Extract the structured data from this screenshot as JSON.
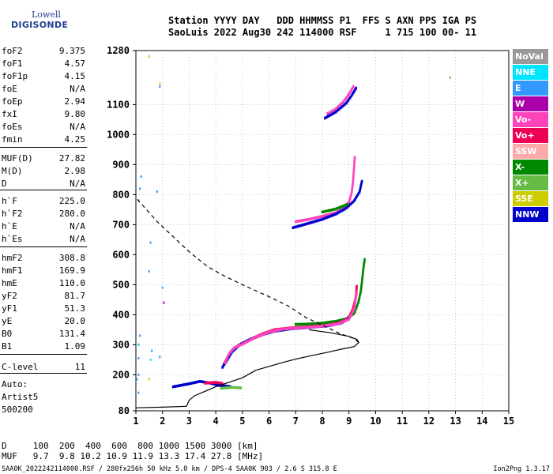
{
  "logo": {
    "line1": "Lowell",
    "line2": "DIGISONDE"
  },
  "header": {
    "line1": "Station YYYY DAY   DDD HHMMSS P1  FFS S AXN PPS IGA PS",
    "line2": "SaoLuis 2022 Aug30 242 114000 RSF     1 715 100 00- 11"
  },
  "params": [
    {
      "k": "foF2",
      "v": "9.375"
    },
    {
      "k": "foF1",
      "v": "4.57"
    },
    {
      "k": "foF1p",
      "v": "4.15"
    },
    {
      "k": "foE",
      "v": "N/A"
    },
    {
      "k": "foEp",
      "v": "2.94"
    },
    {
      "k": "fxI",
      "v": "9.80"
    },
    {
      "k": "foEs",
      "v": "N/A"
    },
    {
      "k": "fmin",
      "v": "4.25"
    },
    {
      "k": "MUF(D)",
      "v": "27.82"
    },
    {
      "k": "M(D)",
      "v": "2.98"
    },
    {
      "k": "D",
      "v": "N/A"
    },
    {
      "k": "h`F",
      "v": "225.0"
    },
    {
      "k": "h`F2",
      "v": "280.0"
    },
    {
      "k": "h`E",
      "v": "N/A"
    },
    {
      "k": "h`Es",
      "v": "N/A"
    },
    {
      "k": "hmF2",
      "v": "308.8"
    },
    {
      "k": "hmF1",
      "v": "169.9"
    },
    {
      "k": "hmE",
      "v": "110.0"
    },
    {
      "k": "yF2",
      "v": "81.7"
    },
    {
      "k": "yF1",
      "v": "51.3"
    },
    {
      "k": "yE",
      "v": "20.0"
    },
    {
      "k": "B0",
      "v": "131.4"
    },
    {
      "k": "B1",
      "v": "1.09"
    },
    {
      "k": "C-level",
      "v": "11"
    },
    {
      "k": "Auto:",
      "v": ""
    },
    {
      "k": "Artist5",
      "v": ""
    },
    {
      "k": "500200",
      "v": ""
    }
  ],
  "legend": [
    {
      "label": "NoVal",
      "color": "#999999"
    },
    {
      "label": "NNE",
      "color": "#00e5ff"
    },
    {
      "label": "E",
      "color": "#3399ff"
    },
    {
      "label": "W",
      "color": "#aa00aa"
    },
    {
      "label": "Vo-",
      "color": "#ff44bb"
    },
    {
      "label": "Vo+",
      "color": "#ee0055"
    },
    {
      "label": "SSW",
      "color": "#ffaaaa"
    },
    {
      "label": "X-",
      "color": "#008800"
    },
    {
      "label": "X+",
      "color": "#66bb44"
    },
    {
      "label": "SSE",
      "color": "#cccc00"
    },
    {
      "label": "NNW",
      "color": "#0000cc"
    }
  ],
  "footer": {
    "line1": "D     100  200  400  600  800 1000 1500 3000 [km]",
    "line2": "MUF   9.7  9.8 10.2 10.9 11.9 13.3 17.4 27.8 [MHz]",
    "line3": "SAA0K_2022242114000.RSF / 280fx256h 50 kHz 5.0 km / DPS-4 SAA0K 903 / 2.6 S 315.8 E",
    "version": "Ion2Png 1.3.17"
  },
  "chart_data": {
    "type": "scatter",
    "xlim": [
      1,
      15
    ],
    "ylim": [
      80,
      1280
    ],
    "xticks": [
      1,
      2,
      3,
      4,
      5,
      6,
      7,
      8,
      9,
      10,
      11,
      12,
      13,
      14,
      15
    ],
    "yticks": [
      80,
      200,
      300,
      400,
      500,
      600,
      700,
      800,
      900,
      1000,
      1100,
      1280
    ],
    "grid": true,
    "legend_position": "right",
    "series": [
      {
        "label": "X-",
        "style": "trace",
        "points": [
          [
            7.0,
            368
          ],
          [
            7.5,
            369
          ],
          [
            8.0,
            372
          ],
          [
            8.5,
            378
          ],
          [
            8.9,
            386
          ],
          [
            9.2,
            405
          ],
          [
            9.35,
            440
          ],
          [
            9.45,
            480
          ],
          [
            9.5,
            520
          ],
          [
            9.55,
            560
          ],
          [
            9.6,
            590
          ]
        ]
      },
      {
        "label": "Vo+",
        "style": "trace",
        "points": [
          [
            4.3,
            235
          ],
          [
            4.45,
            260
          ],
          [
            4.6,
            280
          ],
          [
            4.8,
            295
          ],
          [
            5.0,
            305
          ],
          [
            5.4,
            322
          ],
          [
            5.8,
            338
          ],
          [
            6.2,
            350
          ],
          [
            6.8,
            356
          ],
          [
            7.5,
            360
          ],
          [
            8.2,
            365
          ],
          [
            8.7,
            375
          ],
          [
            9.0,
            390
          ],
          [
            9.15,
            420
          ],
          [
            9.25,
            455
          ],
          [
            9.3,
            500
          ]
        ]
      },
      {
        "label": "NNW",
        "style": "trace",
        "points": [
          [
            4.25,
            225
          ],
          [
            4.4,
            245
          ],
          [
            4.6,
            275
          ],
          [
            4.9,
            300
          ],
          [
            5.3,
            318
          ],
          [
            5.8,
            335
          ],
          [
            6.2,
            345
          ],
          [
            6.8,
            353
          ],
          [
            7.5,
            358
          ],
          [
            8.2,
            363
          ],
          [
            8.7,
            372
          ],
          [
            9.05,
            390
          ]
        ]
      },
      {
        "label": "Vo-",
        "style": "trace",
        "points": [
          [
            4.35,
            240
          ],
          [
            4.5,
            270
          ],
          [
            4.7,
            290
          ],
          [
            5.0,
            302
          ],
          [
            5.5,
            325
          ],
          [
            6.0,
            342
          ],
          [
            6.5,
            352
          ],
          [
            7.2,
            357
          ],
          [
            8.0,
            362
          ],
          [
            8.6,
            370
          ],
          [
            9.0,
            385
          ],
          [
            9.2,
            420
          ],
          [
            9.3,
            480
          ]
        ]
      },
      {
        "label": "Vo-",
        "style": "trace",
        "points": [
          [
            7.0,
            710
          ],
          [
            7.5,
            718
          ],
          [
            8.0,
            728
          ],
          [
            8.5,
            740
          ],
          [
            8.8,
            755
          ],
          [
            9.0,
            775
          ],
          [
            9.1,
            805
          ],
          [
            9.15,
            840
          ],
          [
            9.2,
            900
          ],
          [
            9.22,
            930
          ]
        ]
      },
      {
        "label": "NNW",
        "style": "trace",
        "points": [
          [
            6.9,
            690
          ],
          [
            7.5,
            705
          ],
          [
            8.0,
            718
          ],
          [
            8.5,
            735
          ],
          [
            8.9,
            755
          ],
          [
            9.2,
            780
          ],
          [
            9.4,
            810
          ],
          [
            9.5,
            850
          ]
        ]
      },
      {
        "label": "X-",
        "style": "trace",
        "points": [
          [
            8.0,
            742
          ],
          [
            8.5,
            752
          ],
          [
            9.0,
            770
          ]
        ]
      },
      {
        "label": "Vo-",
        "style": "trace",
        "points": [
          [
            8.2,
            1070
          ],
          [
            8.5,
            1085
          ],
          [
            8.8,
            1110
          ],
          [
            9.0,
            1135
          ],
          [
            9.2,
            1165
          ]
        ]
      },
      {
        "label": "NNW",
        "style": "trace",
        "points": [
          [
            8.1,
            1055
          ],
          [
            8.5,
            1075
          ],
          [
            8.9,
            1105
          ],
          [
            9.1,
            1130
          ],
          [
            9.3,
            1160
          ]
        ]
      },
      {
        "label": "NNW",
        "style": "trace",
        "points": [
          [
            2.4,
            160
          ],
          [
            2.7,
            165
          ],
          [
            3.0,
            170
          ],
          [
            3.4,
            178
          ],
          [
            3.8,
            172
          ],
          [
            4.1,
            165
          ],
          [
            4.6,
            160
          ]
        ]
      },
      {
        "label": "X+",
        "style": "trace",
        "points": [
          [
            4.2,
            155
          ],
          [
            4.6,
            158
          ],
          [
            5.0,
            156
          ]
        ]
      },
      {
        "label": "Vo+",
        "style": "trace",
        "points": [
          [
            3.6,
            172
          ],
          [
            4.0,
            175
          ],
          [
            4.3,
            170
          ]
        ]
      },
      {
        "label": "E",
        "style": "dots",
        "points": [
          [
            1.1,
            140
          ],
          [
            1.1,
            200
          ],
          [
            1.1,
            255
          ],
          [
            1.15,
            330
          ],
          [
            1.1,
            780
          ],
          [
            1.15,
            820
          ],
          [
            1.2,
            860
          ],
          [
            1.5,
            545
          ],
          [
            1.55,
            640
          ],
          [
            1.6,
            280
          ],
          [
            1.8,
            810
          ],
          [
            1.9,
            1160
          ],
          [
            2.0,
            490
          ],
          [
            1.9,
            260
          ]
        ]
      },
      {
        "label": "W",
        "style": "dots",
        "points": [
          [
            2.05,
            440
          ],
          [
            1.1,
            300
          ]
        ]
      },
      {
        "label": "SSE",
        "style": "dots",
        "points": [
          [
            1.5,
            1260
          ],
          [
            1.9,
            1170
          ],
          [
            1.5,
            185
          ]
        ]
      },
      {
        "label": "NNE",
        "style": "dots",
        "points": [
          [
            1.1,
            300
          ],
          [
            1.55,
            250
          ],
          [
            1.05,
            185
          ]
        ]
      },
      {
        "label": "X+",
        "style": "dots",
        "points": [
          [
            12.8,
            1190
          ]
        ]
      },
      {
        "label": "profile",
        "style": "solid",
        "color": "#000000",
        "points": [
          [
            1.0,
            90
          ],
          [
            2.0,
            92
          ],
          [
            2.9,
            95
          ],
          [
            3.0,
            115
          ],
          [
            3.2,
            130
          ],
          [
            4.0,
            160
          ],
          [
            5.0,
            190
          ],
          [
            5.5,
            215
          ],
          [
            6.0,
            228
          ],
          [
            6.6,
            243
          ],
          [
            7.0,
            252
          ],
          [
            7.6,
            264
          ],
          [
            8.2,
            275
          ],
          [
            8.7,
            285
          ],
          [
            9.2,
            294
          ],
          [
            9.37,
            308
          ],
          [
            9.3,
            318
          ],
          [
            9.0,
            328
          ],
          [
            8.3,
            340
          ],
          [
            7.5,
            350
          ]
        ]
      },
      {
        "label": "profile-ext",
        "style": "dashed",
        "color": "#000000",
        "points": [
          [
            9.37,
            308
          ],
          [
            9.2,
            320
          ],
          [
            8.6,
            340
          ],
          [
            8.0,
            365
          ],
          [
            7.4,
            390
          ],
          [
            6.7,
            430
          ],
          [
            6.0,
            460
          ],
          [
            5.0,
            500
          ],
          [
            4.3,
            530
          ],
          [
            3.7,
            560
          ],
          [
            3.0,
            610
          ],
          [
            2.4,
            660
          ],
          [
            1.8,
            710
          ],
          [
            1.0,
            790
          ]
        ]
      }
    ]
  }
}
